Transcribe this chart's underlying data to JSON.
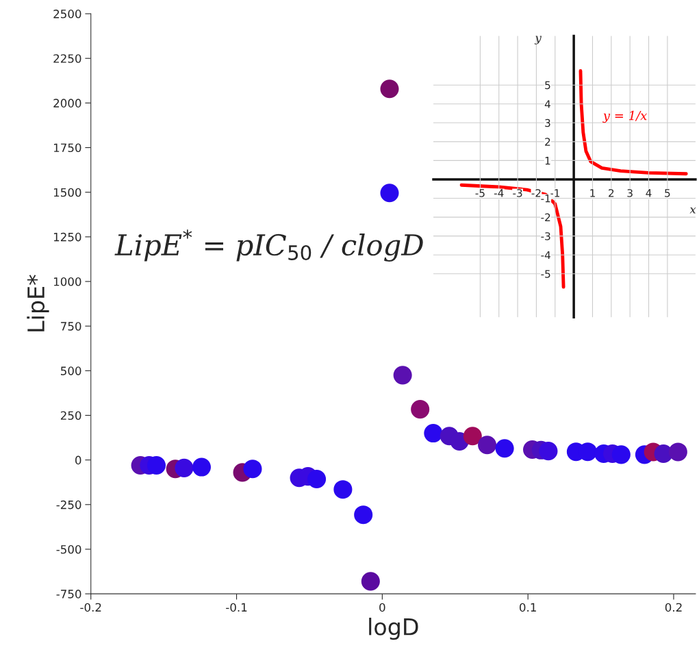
{
  "chart_data": [
    {
      "type": "scatter",
      "xlabel": "logD",
      "ylabel": "LipE*",
      "xlim": [
        -0.2,
        0.215
      ],
      "ylim": [
        -750,
        2500
      ],
      "xticks": [
        -0.2,
        -0.1,
        0,
        0.1,
        0.2
      ],
      "yticks": [
        -750,
        -500,
        -250,
        0,
        250,
        500,
        750,
        1000,
        1250,
        1500,
        1750,
        2000,
        2250,
        2500
      ],
      "grid": false,
      "marker": "circle",
      "annotations": [
        "LipE$^{*}$ = pIC$_{50}$ / clogD"
      ],
      "x": [
        -0.166,
        -0.16,
        -0.155,
        -0.142,
        -0.136,
        -0.124,
        -0.096,
        -0.089,
        -0.057,
        -0.051,
        -0.045,
        -0.027,
        -0.013,
        -0.008,
        0.005,
        0.005,
        0.014,
        0.026,
        0.035,
        0.046,
        0.053,
        0.062,
        0.072,
        0.084,
        0.103,
        0.109,
        0.114,
        0.133,
        0.141,
        0.152,
        0.158,
        0.164,
        0.18,
        0.186,
        0.193,
        0.203
      ],
      "values": [
        -30,
        -30,
        -30,
        -50,
        -45,
        -40,
        -70,
        -50,
        -100,
        -92,
        -107,
        -165,
        -307,
        -680,
        2079,
        1496,
        475,
        284,
        150,
        134,
        104,
        134,
        84,
        65,
        58,
        55,
        50,
        46,
        46,
        35,
        35,
        30,
        30,
        45,
        35,
        45
      ],
      "colors": [
        "#5a10b0",
        "#3a0ae0",
        "#2a08ee",
        "#7a0a70",
        "#3a0ae0",
        "#2a08ee",
        "#7a0a70",
        "#2a08ee",
        "#3a0ae0",
        "#3a0ae0",
        "#2a08ee",
        "#2a08ee",
        "#2a08ee",
        "#5a0aa0",
        "#7a0a6a",
        "#2a08ee",
        "#5a10b0",
        "#8a0a70",
        "#2a08ee",
        "#4a10c0",
        "#4a10c0",
        "#a00a5a",
        "#5a10b0",
        "#2a08ee",
        "#5a10b0",
        "#4a10c0",
        "#3a0ae0",
        "#2a08ee",
        "#2a08ee",
        "#2a08ee",
        "#3a0ae0",
        "#2a08ee",
        "#2a08ee",
        "#a00a5a",
        "#4a10c0",
        "#5a10b0"
      ]
    },
    {
      "type": "line",
      "xlabel": "x",
      "ylabel": "y",
      "xlim": [
        -7.5,
        6.5
      ],
      "ylim": [
        -7.3,
        7.6
      ],
      "xticks": [
        -5,
        -4,
        -3,
        -2,
        -1,
        1,
        2,
        3,
        4,
        5
      ],
      "yticks": [
        -5,
        -4,
        -3,
        -2,
        -1,
        1,
        2,
        3,
        4,
        5
      ],
      "grid": true,
      "series": [
        {
          "name": "y = 1/x",
          "color": "#ff0000",
          "x": [
            -6,
            -4,
            -2.5,
            -1.5,
            -1,
            -0.7,
            -0.6,
            -0.55,
            null,
            0.36,
            0.4,
            0.5,
            0.65,
            0.9,
            1.5,
            2.5,
            4,
            6
          ],
          "values": [
            -0.3,
            -0.4,
            -0.55,
            -0.8,
            -1.3,
            -2.5,
            -4,
            -5.7,
            null,
            5.75,
            4,
            2.5,
            1.5,
            0.95,
            0.6,
            0.45,
            0.35,
            0.3
          ]
        }
      ]
    }
  ]
}
